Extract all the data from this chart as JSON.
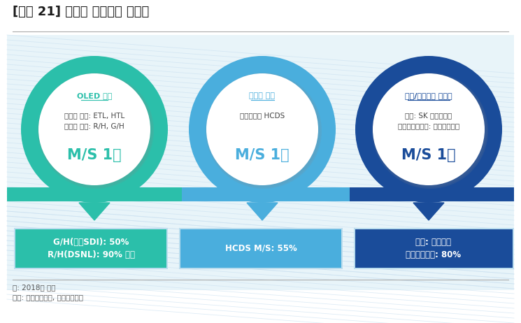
{
  "title": "[그림 21] 부문별 고객사내 점유율",
  "note1": "주: 2018년 기준",
  "note2": "자료: 덕산테코피아, 한국투자증권",
  "circles": [
    {
      "label": "OLED 소재",
      "text_lines": [
        "공통층 소재: ETL, HTL",
        "발광층 소재: R/H, G/H"
      ],
      "ms_text": "M/S 1위",
      "outer_color": "#2BBFAA",
      "label_color": "#2BBFAA",
      "ms_color": "#2BBFAA",
      "bar_color": "#2BBFAA",
      "arrow_color": "#2BBFAA",
      "box_color": "#2BBFAA",
      "box_text": [
        "G/H(삼성SDI): 50%",
        "R/H(DSNL): 90% 이상"
      ]
    },
    {
      "label": "반도체 소재",
      "text_lines": [
        "삼성전자内 HCDS"
      ],
      "ms_text": "M/S 1위",
      "outer_color": "#4AAEDD",
      "label_color": "#4AAEDD",
      "ms_color": "#4AAEDD",
      "bar_color": "#4AAEDD",
      "arrow_color": "#4AAEDD",
      "box_color": "#4AAEDD",
      "box_text": [
        "HCDS M/S: 55%"
      ]
    },
    {
      "label": "촉매/합성고무 첨가제",
      "text_lines": [
        "촉매: SK 이노베이션",
        "합성고무첨가제: 금호석유화학"
      ],
      "ms_text": "M/S 1위",
      "outer_color": "#1A4C9A",
      "label_color": "#1A4C9A",
      "ms_color": "#1A4C9A",
      "bar_color": "#1A4C9A",
      "arrow_color": "#1A4C9A",
      "box_color": "#1A4C9A",
      "box_text": [
        "촉매: 단독공급",
        "금호석유화학: 80%"
      ]
    }
  ],
  "bg_color": "#FFFFFF",
  "panel_bg": "#E8F4F9",
  "text_color": "#444444",
  "separator_color": "#AAAAAA",
  "fig_w": 7.45,
  "fig_h": 4.62,
  "dpi": 100
}
